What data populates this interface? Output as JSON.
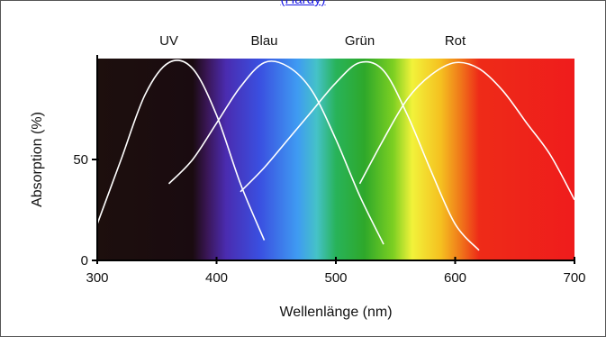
{
  "caption_link": "(Hardy)",
  "chart_data": {
    "type": "line",
    "x": [
      300,
      320,
      340,
      360,
      380,
      400,
      420,
      440,
      460,
      480,
      500,
      520,
      540,
      560,
      580,
      600,
      620,
      640,
      660,
      680,
      700
    ],
    "series": [
      {
        "name": "UV",
        "values": [
          18,
          50,
          82,
          98,
          95,
          72,
          38,
          10,
          null,
          null,
          null,
          null,
          null,
          null,
          null,
          null,
          null,
          null,
          null,
          null,
          null
        ]
      },
      {
        "name": "Blau",
        "values": [
          null,
          null,
          null,
          38,
          50,
          68,
          86,
          98,
          96,
          84,
          60,
          32,
          8,
          null,
          null,
          null,
          null,
          null,
          null,
          null,
          null
        ]
      },
      {
        "name": "Grün",
        "values": [
          null,
          null,
          null,
          null,
          null,
          null,
          34,
          46,
          60,
          74,
          88,
          98,
          94,
          72,
          44,
          18,
          5,
          null,
          null,
          null,
          null
        ]
      },
      {
        "name": "Rot",
        "values": [
          null,
          null,
          null,
          null,
          null,
          null,
          null,
          null,
          null,
          null,
          null,
          38,
          60,
          80,
          92,
          98,
          95,
          84,
          68,
          52,
          30
        ]
      }
    ],
    "series_labels": [
      "UV",
      "Blau",
      "Grün",
      "Rot"
    ],
    "xlabel": "Wellenlänge (nm)",
    "ylabel": "Absorption (%)",
    "xlim": [
      300,
      700
    ],
    "ylim": [
      0,
      100
    ],
    "xticks": [
      "300",
      "400",
      "500",
      "600",
      "700"
    ],
    "yticks": [
      "0",
      "50"
    ],
    "background": "visible color spectrum",
    "line_color": "#ffffff"
  }
}
